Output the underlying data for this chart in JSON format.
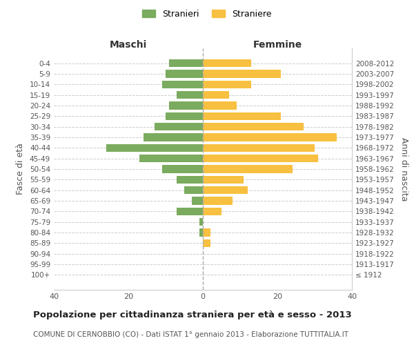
{
  "age_groups": [
    "100+",
    "95-99",
    "90-94",
    "85-89",
    "80-84",
    "75-79",
    "70-74",
    "65-69",
    "60-64",
    "55-59",
    "50-54",
    "45-49",
    "40-44",
    "35-39",
    "30-34",
    "25-29",
    "20-24",
    "15-19",
    "10-14",
    "5-9",
    "0-4"
  ],
  "birth_years": [
    "≤ 1912",
    "1913-1917",
    "1918-1922",
    "1923-1927",
    "1928-1932",
    "1933-1937",
    "1938-1942",
    "1943-1947",
    "1948-1952",
    "1953-1957",
    "1958-1962",
    "1963-1967",
    "1968-1972",
    "1973-1977",
    "1978-1982",
    "1983-1987",
    "1988-1992",
    "1993-1997",
    "1998-2002",
    "2003-2007",
    "2008-2012"
  ],
  "maschi": [
    0,
    0,
    0,
    0,
    1,
    1,
    7,
    3,
    5,
    7,
    11,
    17,
    26,
    16,
    13,
    10,
    9,
    7,
    11,
    10,
    9
  ],
  "femmine": [
    0,
    0,
    0,
    2,
    2,
    0,
    5,
    8,
    12,
    11,
    24,
    31,
    30,
    36,
    27,
    21,
    9,
    7,
    13,
    21,
    13
  ],
  "male_color": "#7aab5e",
  "female_color": "#f8c040",
  "background_color": "#ffffff",
  "grid_color": "#cccccc",
  "title": "Popolazione per cittadinanza straniera per età e sesso - 2013",
  "subtitle": "COMUNE DI CERNOBBIO (CO) - Dati ISTAT 1° gennaio 2013 - Elaborazione TUTTITALIA.IT",
  "ylabel_left": "Fasce di età",
  "ylabel_right": "Anni di nascita",
  "xlabel_left": "Maschi",
  "xlabel_top_right": "Femmine",
  "legend_maschi": "Stranieri",
  "legend_femmine": "Straniere",
  "xlim": 40
}
